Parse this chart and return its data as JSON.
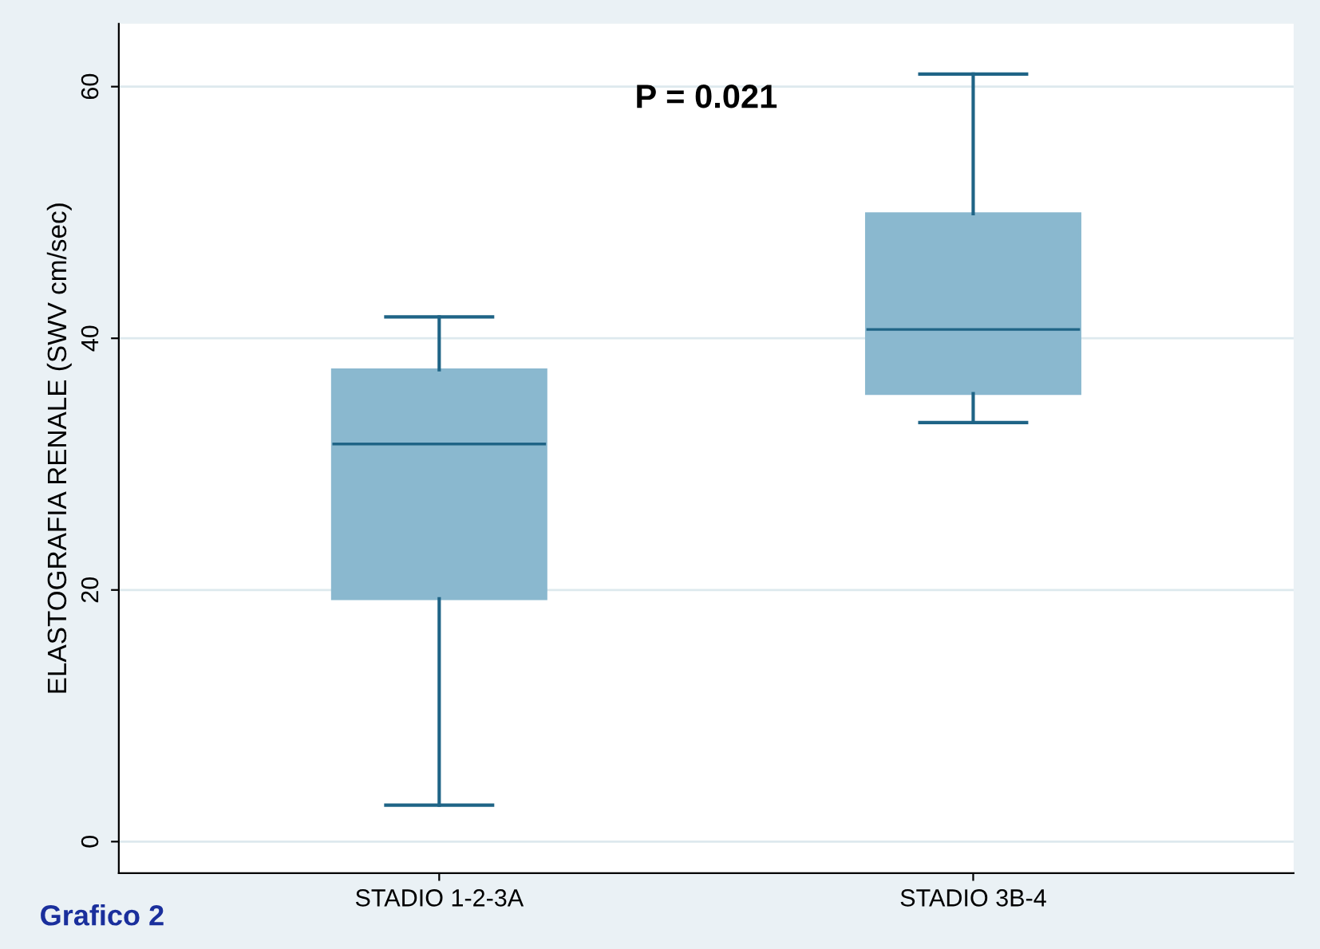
{
  "chart_data": {
    "type": "box",
    "ylabel": "ELASTOGRAFIA RENALE (SWV cm/sec)",
    "categories": [
      "STADIO 1-2-3A",
      "STADIO 3B-4"
    ],
    "boxes": [
      {
        "low": 2.9,
        "q1": 19.3,
        "median": 31.6,
        "q3": 37.5,
        "high": 41.7
      },
      {
        "low": 33.3,
        "q1": 35.6,
        "median": 40.7,
        "q3": 49.9,
        "high": 61.0
      }
    ],
    "color": "#8ab8cf",
    "ylim": [
      -2.5,
      65
    ],
    "yticks": [
      0,
      20,
      40,
      60
    ],
    "grid": "y",
    "annotations": [
      "P = 0.021",
      "Grafico 2"
    ]
  }
}
